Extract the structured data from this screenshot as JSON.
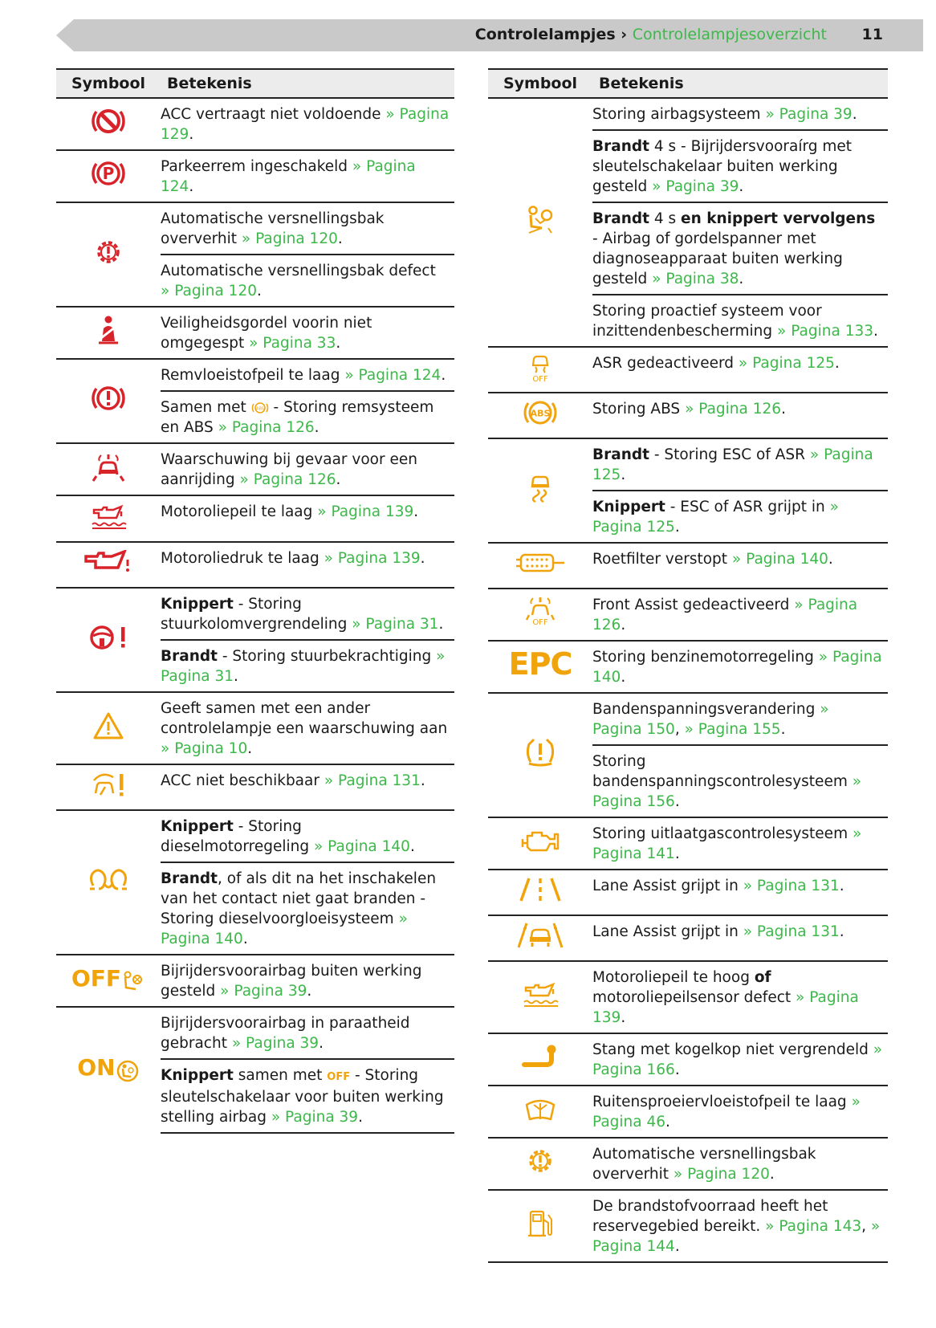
{
  "header": {
    "section": "Controlelampjes",
    "separator": " › ",
    "subsection": "Controlelampjesoverzicht",
    "page_number": "11"
  },
  "left": {
    "col_symbol": "Symbool",
    "col_meaning": "Betekenis",
    "rows": [
      {
        "icon": "acc-deceleration-icon",
        "text": "ACC vertraagt niet voldoende ",
        "ref": "» Pagina 129"
      },
      {
        "icon": "parking-brake-icon",
        "text": "Parkeerrem ingeschakeld ",
        "ref": "» Pagina 124"
      },
      {
        "icon": "gearbox-icon",
        "text": "Automatische versnellingsbak oververhit ",
        "ref": "» Pagina 120"
      },
      {
        "text": "Automatische versnellingsbak defect ",
        "ref": "» Pagina 120"
      },
      {
        "icon": "seatbelt-icon",
        "text": "Veiligheidsgordel voorin niet omgegespt ",
        "ref": "» Pagina 33"
      },
      {
        "icon": "brake-system-icon",
        "text": "Remvloeistofpeil te laag ",
        "ref": "» Pagina 124"
      },
      {
        "text_a": "Samen met ",
        "icon_inline": "abs-small-icon",
        "text": " - Storing remsysteem en ABS ",
        "ref": "» Pagina 126"
      },
      {
        "icon": "collision-warning-icon",
        "text": "Waarschuwing bij gevaar voor een aanrijding ",
        "ref": "» Pagina 126"
      },
      {
        "icon": "oil-level-icon",
        "text": "Motoroliepeil te laag ",
        "ref": "» Pagina 139"
      },
      {
        "icon": "oil-pressure-icon",
        "text": "Motoroliedruk te laag ",
        "ref": "» Pagina 139"
      },
      {
        "icon": "steering-icon",
        "bold": "Knippert",
        "text": " - Storing stuurkolomvergrendeling ",
        "ref": "» Pagina 31"
      },
      {
        "bold": "Brandt",
        "text": " - Storing stuurbekrachtiging ",
        "ref": "» Pagina 31"
      },
      {
        "icon": "warning-triangle-icon",
        "text": "Geeft samen met een ander controlelampje een waarschuwing aan ",
        "ref": "» Pagina 10"
      },
      {
        "icon": "acc-unavailable-icon",
        "text": "ACC niet beschikbaar ",
        "ref": "» Pagina 131"
      },
      {
        "icon": "glow-plug-icon",
        "bold": "Knippert",
        "text": " - Storing dieselmotorregeling ",
        "ref": "» Pagina 140"
      },
      {
        "bold": "Brandt",
        "text": ", of als dit na het inschakelen van het contact niet gaat branden - Storing dieselvoorgloeisysteem ",
        "ref": "» Pagina 140"
      },
      {
        "icon": "airbag-off-icon",
        "icon_text": "OFF",
        "text": "Bijrijdersvoorairbag buiten werking gesteld ",
        "ref": "» Pagina 39"
      },
      {
        "icon": "airbag-on-icon",
        "icon_text": "ON",
        "text": "Bijrijdersvoorairbag in paraatheid gebracht ",
        "ref": "» Pagina 39"
      },
      {
        "bold": "Knippert",
        "text_a": " samen met ",
        "inline_text": "OFF",
        "text": " - Storing sleutelschakelaar voor buiten werking stelling airbag ",
        "ref": "» Pagina 39"
      }
    ]
  },
  "right": {
    "col_symbol": "Symbool",
    "col_meaning": "Betekenis",
    "rows": [
      {
        "icon": "airbag-system-icon",
        "text": "Storing airbagsysteem ",
        "ref": "» Pagina 39"
      },
      {
        "bold": "Brandt",
        "text": " 4 s - Bijrijdersvooraírg met sleutelschakelaar buiten werking gesteld ",
        "ref": "» Pagina 39"
      },
      {
        "bold": "Brandt",
        "text_a": " 4 s ",
        "bold2": "en knippert vervolgens",
        "text": " - Airbag of gordelspanner met diagnoseapparaat buiten werking gesteld ",
        "ref": "» Pagina 38"
      },
      {
        "text": "Storing proactief systeem voor inzittendenbescherming ",
        "ref": "» Pagina 133"
      },
      {
        "icon": "asr-off-icon",
        "icon_text": "OFF",
        "text": "ASR gedeactiveerd ",
        "ref": "» Pagina 125"
      },
      {
        "icon": "abs-icon",
        "icon_text": "ABS",
        "text": "Storing ABS ",
        "ref": "» Pagina 126"
      },
      {
        "icon": "esc-icon",
        "bold": "Brandt",
        "text": " - Storing ESC of ASR ",
        "ref": "» Pagina 125"
      },
      {
        "bold": "Knippert",
        "text": " - ESC of ASR grijpt in ",
        "ref": "» Pagina 125"
      },
      {
        "icon": "particle-filter-icon",
        "text": "Roetfilter verstopt ",
        "ref": "» Pagina 140"
      },
      {
        "icon": "front-assist-off-icon",
        "icon_text": "OFF",
        "text": "Front Assist gedeactiveerd ",
        "ref": "» Pagina 126"
      },
      {
        "icon": "epc-icon",
        "icon_text": "EPC",
        "text": "Storing benzinemotorregeling ",
        "ref": "» Pagina 140"
      },
      {
        "icon": "tyre-pressure-icon",
        "text": "Bandenspanningsverandering ",
        "ref": "» Pagina 150",
        "ref2": "» Pagina 155"
      },
      {
        "text": "Storing bandenspanningscontrolesysteem ",
        "ref": "» Pagina 156"
      },
      {
        "icon": "engine-icon",
        "text": "Storing uitlaatgascontrolesysteem ",
        "ref": "» Pagina 141"
      },
      {
        "icon": "lane-assist-icon",
        "text": "Lane Assist grijpt in ",
        "ref": "» Pagina 131"
      },
      {
        "icon": "lane-assist-car-icon",
        "text": "Lane Assist grijpt in ",
        "ref": "» Pagina 131"
      },
      {
        "icon": "oil-sensor-icon",
        "text_a": "Motoroliepeil te hoog ",
        "bold": "of",
        "text": " motoroliepeilsensor defect ",
        "ref": "» Pagina 139"
      },
      {
        "icon": "towbar-icon",
        "text": "Stang met kogelkop niet vergrendeld ",
        "ref": "» Pagina 166"
      },
      {
        "icon": "washer-fluid-icon",
        "text": "Ruitensproeiervloeistofpeil te laag ",
        "ref": "» Pagina 46"
      },
      {
        "icon": "gearbox-icon",
        "text": "Automatische versnellingsbak oververhit ",
        "ref": "» Pagina 120"
      },
      {
        "icon": "fuel-icon",
        "text": "De brandstofvoorraad heeft het reservegebied bereikt. ",
        "ref": "» Pagina 143",
        "ref2": "» Pagina 144"
      }
    ]
  }
}
